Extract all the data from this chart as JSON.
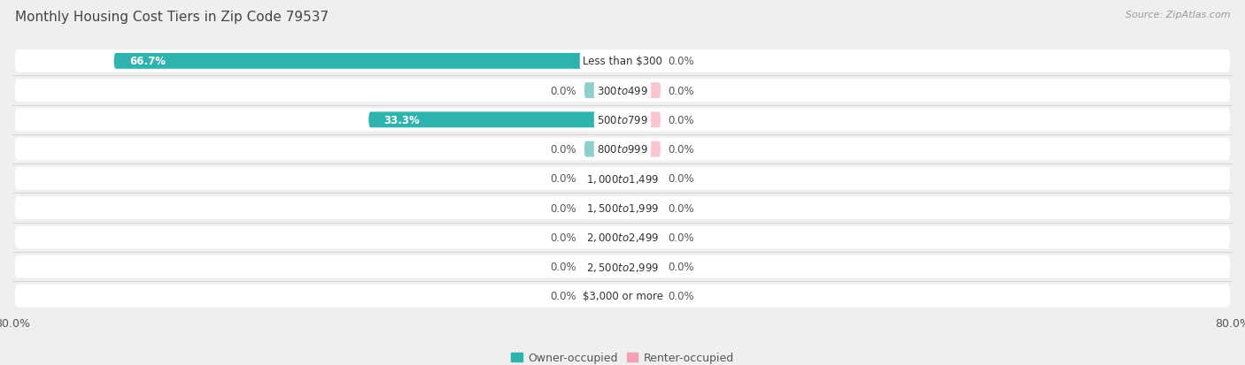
{
  "title": "Monthly Housing Cost Tiers in Zip Code 79537",
  "source": "Source: ZipAtlas.com",
  "categories": [
    "Less than $300",
    "$300 to $499",
    "$500 to $799",
    "$800 to $999",
    "$1,000 to $1,499",
    "$1,500 to $1,999",
    "$2,000 to $2,499",
    "$2,500 to $2,999",
    "$3,000 or more"
  ],
  "owner_values": [
    66.7,
    0.0,
    33.3,
    0.0,
    0.0,
    0.0,
    0.0,
    0.0,
    0.0
  ],
  "renter_values": [
    0.0,
    0.0,
    0.0,
    0.0,
    0.0,
    0.0,
    0.0,
    0.0,
    0.0
  ],
  "owner_color": "#2fb3ae",
  "renter_color": "#f4a0b5",
  "owner_color_light": "#90d0cc",
  "renter_color_light": "#f9c5d1",
  "axis_max": 80.0,
  "background_color": "#efefef",
  "bar_bg_color": "#ffffff",
  "row_bg_color": "#f5f5f5",
  "title_fontsize": 11,
  "label_fontsize": 8.5,
  "legend_fontsize": 9,
  "source_fontsize": 8
}
